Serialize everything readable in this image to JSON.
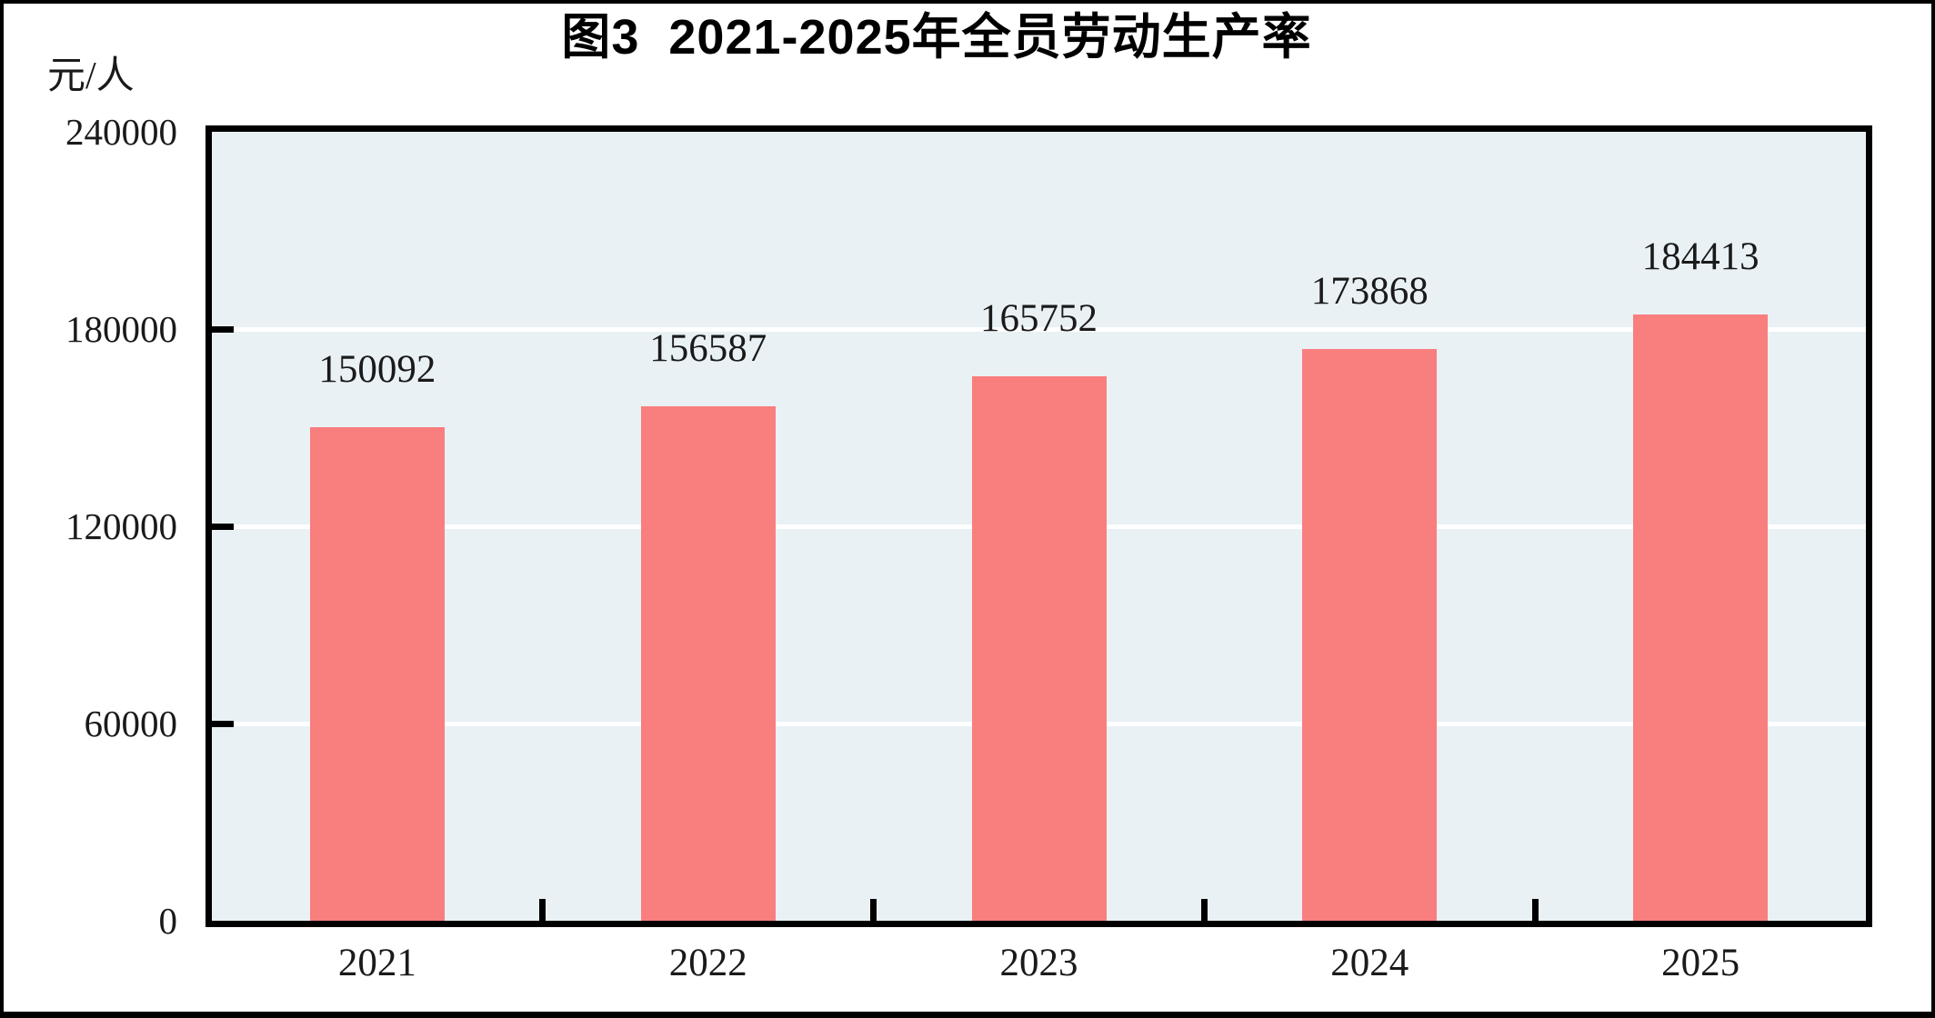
{
  "title": "图3  2021-2025年全员劳动生产率",
  "y_axis_unit": "元/人",
  "chart_data": {
    "type": "bar",
    "title": "图3  2021-2025年全员劳动生产率",
    "categories": [
      "2021",
      "2022",
      "2023",
      "2024",
      "2025"
    ],
    "values": [
      150092,
      156587,
      165752,
      173868,
      184413
    ],
    "data_labels": [
      "150092",
      "156587",
      "165752",
      "173868",
      "184413"
    ],
    "xlabel": "",
    "ylabel": "元/人",
    "ylim": [
      0,
      240000
    ],
    "yticks": [
      0,
      60000,
      120000,
      180000,
      240000
    ],
    "ytick_labels": [
      "0",
      "60000",
      "120000",
      "180000",
      "240000"
    ],
    "grid": "horizontal white gridlines at 60000/120000/180000",
    "legend_position": "none",
    "bar_color": "#f97e7e",
    "plot_background": "#e9f1f5",
    "gridline_color": "#ffffff",
    "axis_color": "#000000",
    "text_color": "#1a1a1a"
  }
}
